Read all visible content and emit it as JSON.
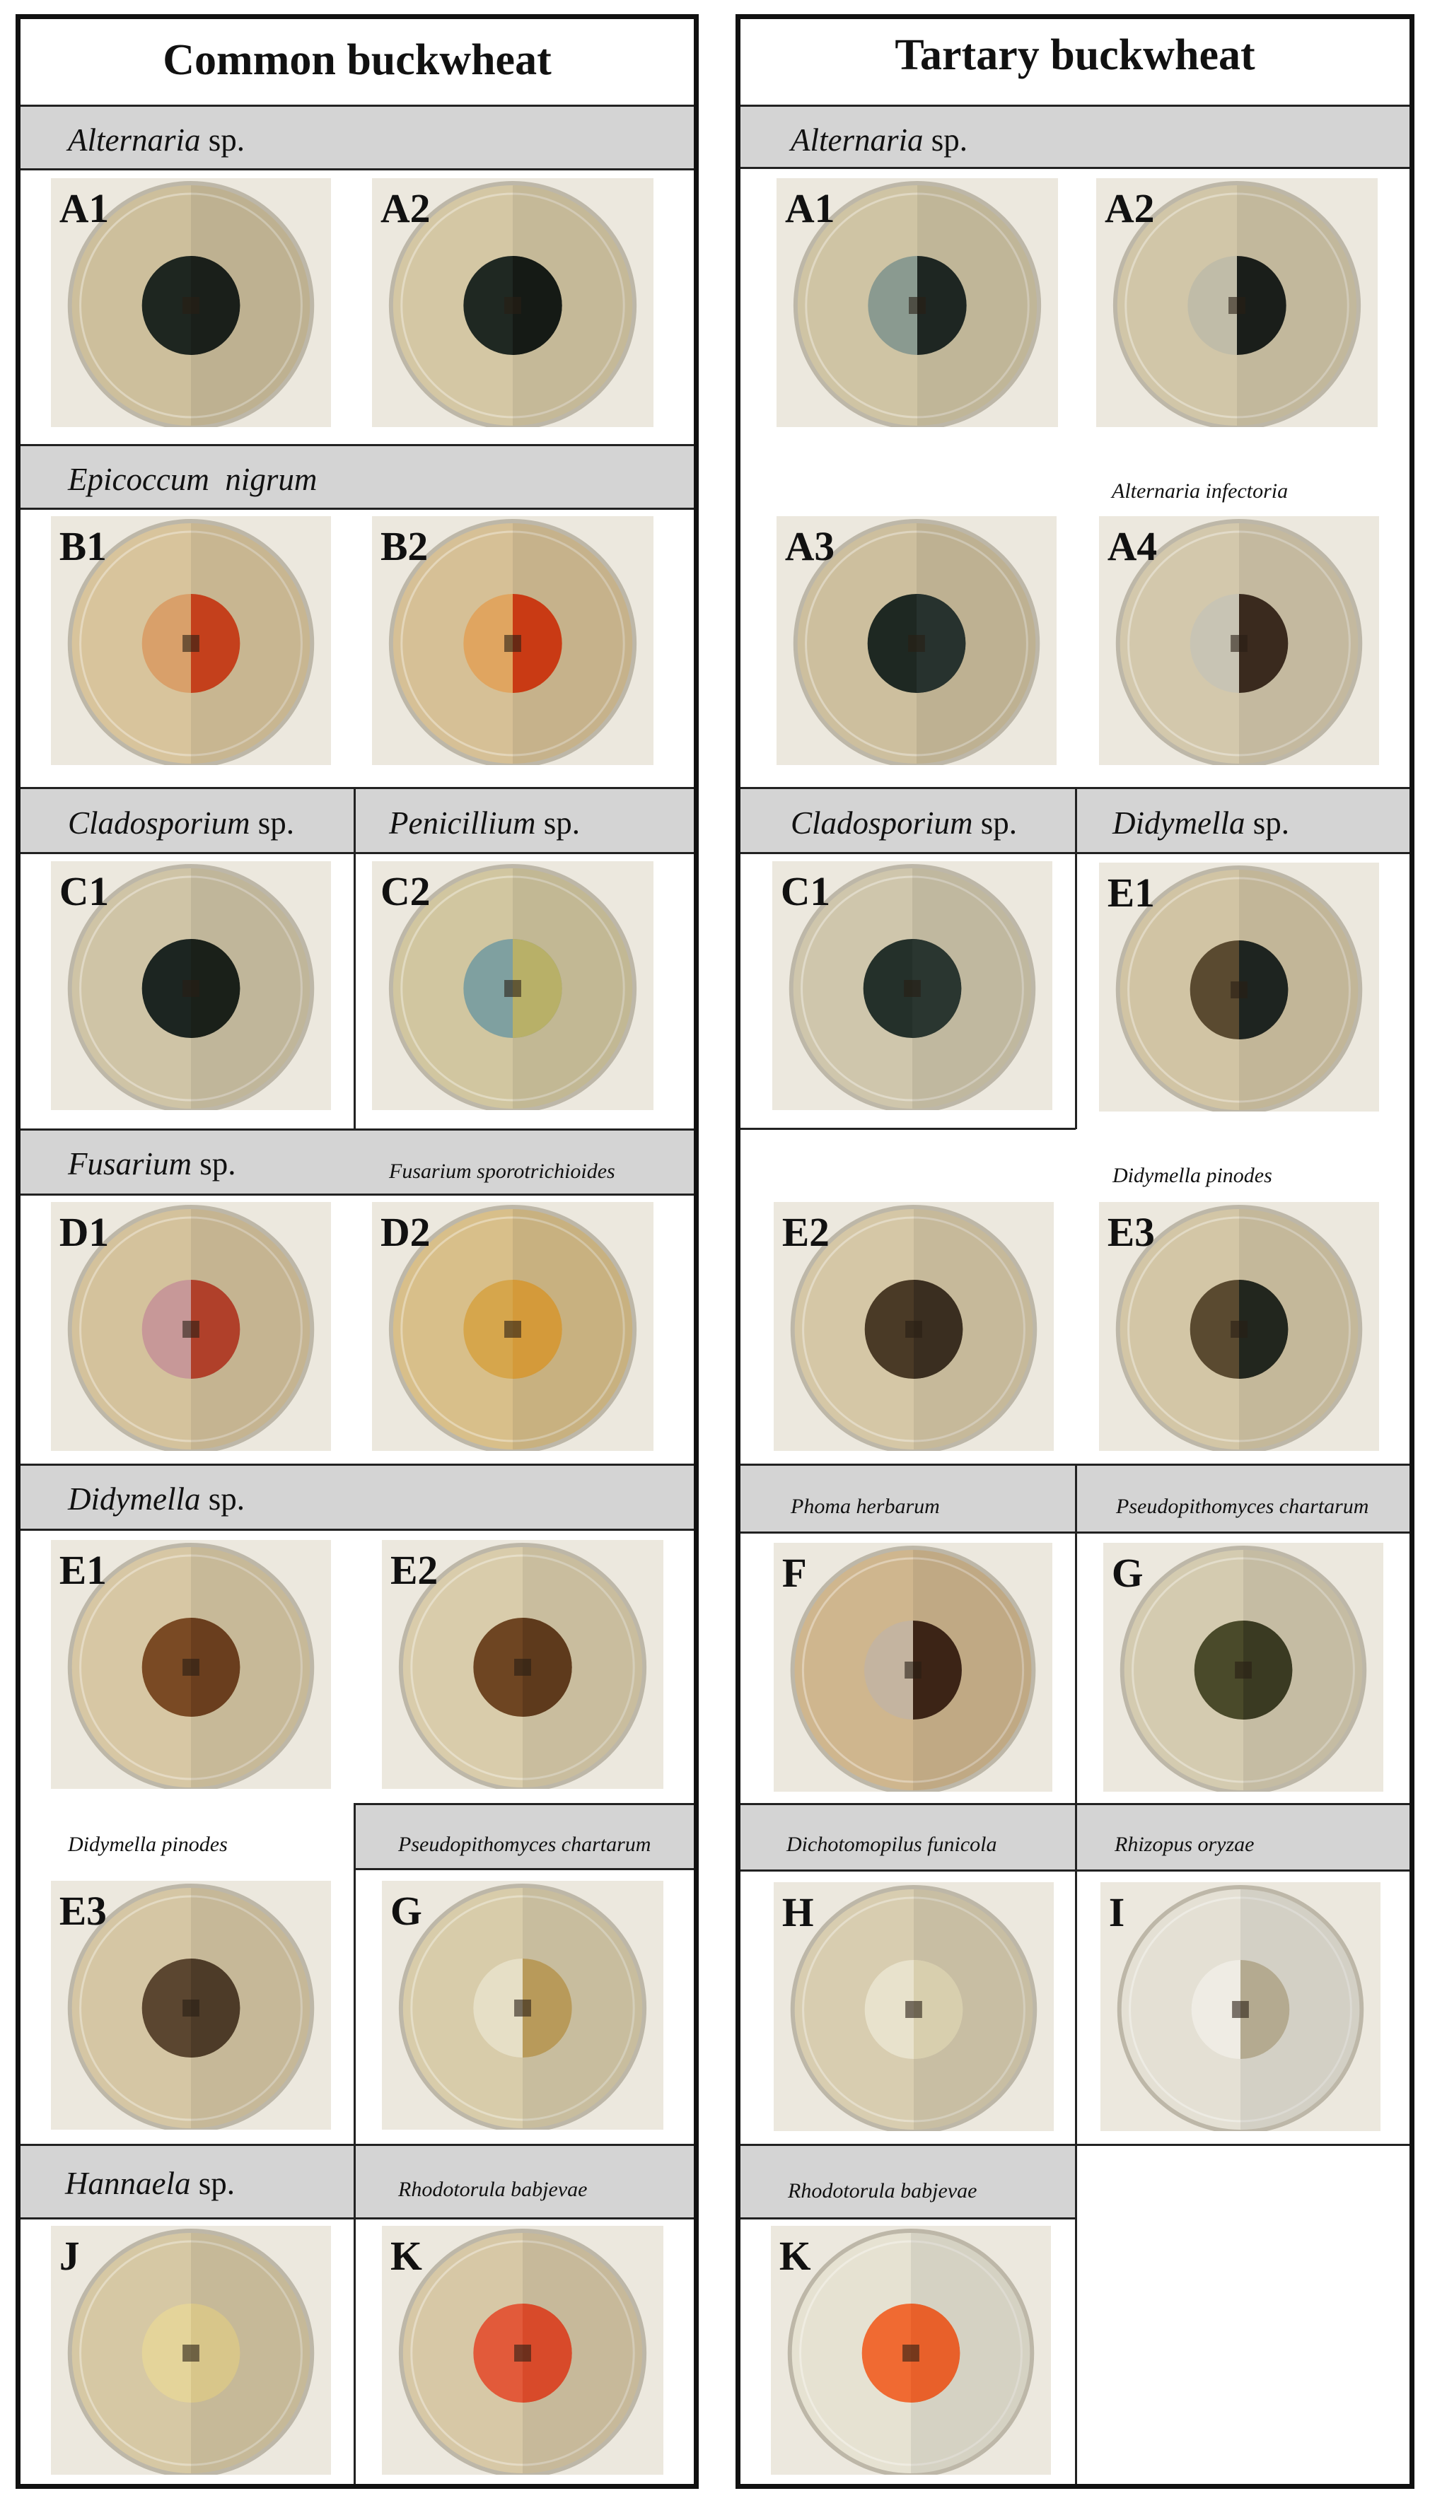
{
  "columns": [
    {
      "title": "Common buckwheat"
    },
    {
      "title": "Tartary buckwheat"
    }
  ],
  "labels": {
    "common": [
      {
        "it": "Alternaria",
        "rest": " sp."
      },
      {
        "it": "Epicoccum  nigrum",
        "rest": ""
      },
      {
        "it": "Cladosporium",
        "rest": " sp."
      },
      {
        "it": "Penicillium",
        "rest": " sp."
      },
      {
        "it": "Fusarium",
        "rest": " sp."
      },
      {
        "it": "Fusarium sporotrichioides",
        "rest": ""
      },
      {
        "it": "Didymella",
        "rest": " sp."
      },
      {
        "it": "Didymella pinodes",
        "rest": ""
      },
      {
        "it": "Pseudopithomyces chartarum",
        "rest": ""
      },
      {
        "it": "Hannaela",
        "rest": " sp."
      },
      {
        "it": "Rhodotorula babjevae",
        "rest": ""
      }
    ],
    "tartary": [
      {
        "it": "Alternaria",
        "rest": " sp."
      },
      {
        "it": "Alternaria infectoria",
        "rest": ""
      },
      {
        "it": "Cladosporium",
        "rest": " sp."
      },
      {
        "it": "Didymella",
        "rest": " sp."
      },
      {
        "it": "Didymella pinodes",
        "rest": ""
      },
      {
        "it": "Phoma herbarum",
        "rest": ""
      },
      {
        "it": "Pseudopithomyces chartarum",
        "rest": ""
      },
      {
        "it": "Dichotomopilus funicola",
        "rest": ""
      },
      {
        "it": "Rhizopus oryzae",
        "rest": ""
      },
      {
        "it": "Rhodotorula babjevae",
        "rest": ""
      }
    ]
  },
  "plates": {
    "common": [
      {
        "code": "A1",
        "bg": "#cdbf9c",
        "colony": "#1e2620",
        "right": "#1a1f1a"
      },
      {
        "code": "A2",
        "bg": "#d4c7a4",
        "colony": "#1f2822",
        "right": "#151a15"
      },
      {
        "code": "B1",
        "bg": "#d8c49c",
        "colony": "#d9a06a",
        "right": "#c4401c"
      },
      {
        "code": "B2",
        "bg": "#d6c096",
        "colony": "#e0a560",
        "right": "#c93a14"
      },
      {
        "code": "C1",
        "bg": "#cfc4a6",
        "colony": "#1c2521",
        "right": "#1a2019"
      },
      {
        "code": "C2",
        "bg": "#d1c6a0",
        "colony": "#7fa0a0",
        "right": "#b8b068"
      },
      {
        "code": "D1",
        "bg": "#d4c29c",
        "colony": "#c79898",
        "right": "#b0402a"
      },
      {
        "code": "D2",
        "bg": "#d8bf8a",
        "colony": "#d6a64c",
        "right": "#d49a3a"
      },
      {
        "code": "E1",
        "bg": "#d7c7a4",
        "colony": "#7a4a24",
        "right": "#6a3e1e"
      },
      {
        "code": "E2",
        "bg": "#d9ccab",
        "colony": "#6e4522",
        "right": "#5e3a1c"
      },
      {
        "code": "E3",
        "bg": "#d5c6a4",
        "colony": "#5b4630",
        "right": "#4d3b28"
      },
      {
        "code": "G",
        "bg": "#d8ccaa",
        "colony": "#e6dfc6",
        "right": "#b89a5a"
      },
      {
        "code": "J",
        "bg": "#d6c8a4",
        "colony": "#e4d49a",
        "right": "#d8c68a"
      },
      {
        "code": "K",
        "bg": "#d7c8a6",
        "colony": "#e25a3a",
        "right": "#d84a2a"
      }
    ],
    "tartary": [
      {
        "code": "A1",
        "bg": "#cfc4a4",
        "colony": "#8a9a90",
        "right": "#1e2622"
      },
      {
        "code": "A2",
        "bg": "#d1c6a8",
        "colony": "#c0bca8",
        "right": "#1a1e1a"
      },
      {
        "code": "A3",
        "bg": "#cdbf9e",
        "colony": "#1e2822",
        "right": "#27322e"
      },
      {
        "code": "A4",
        "bg": "#d3c8ac",
        "colony": "#c8c4b4",
        "right": "#3a2a1e"
      },
      {
        "code": "C1",
        "bg": "#cfc6ac",
        "colony": "#24302a",
        "right": "#2a3630"
      },
      {
        "code": "E1",
        "bg": "#d1c4a4",
        "colony": "#5a4a30",
        "right": "#1e2420"
      },
      {
        "code": "E2",
        "bg": "#d5c7a6",
        "colony": "#4a3a26",
        "right": "#3a2e20"
      },
      {
        "code": "E3",
        "bg": "#d3c6a6",
        "colony": "#5a4a30",
        "right": "#22261e"
      },
      {
        "code": "F",
        "bg": "#cfb68e",
        "colony": "#c4b4a0",
        "right": "#3c2416"
      },
      {
        "code": "G",
        "bg": "#d4cbb0",
        "colony": "#4a4a2a",
        "right": "#3a3a22"
      },
      {
        "code": "H",
        "bg": "#d8cdb0",
        "colony": "#e8e2cc",
        "right": "#d8cfae"
      },
      {
        "code": "I",
        "bg": "#e4e0d4",
        "colony": "#efece4",
        "right": "#b4aa90"
      },
      {
        "code": "K",
        "bg": "#e6e2d2",
        "colony": "#f06a32",
        "right": "#e8602a"
      }
    ]
  }
}
